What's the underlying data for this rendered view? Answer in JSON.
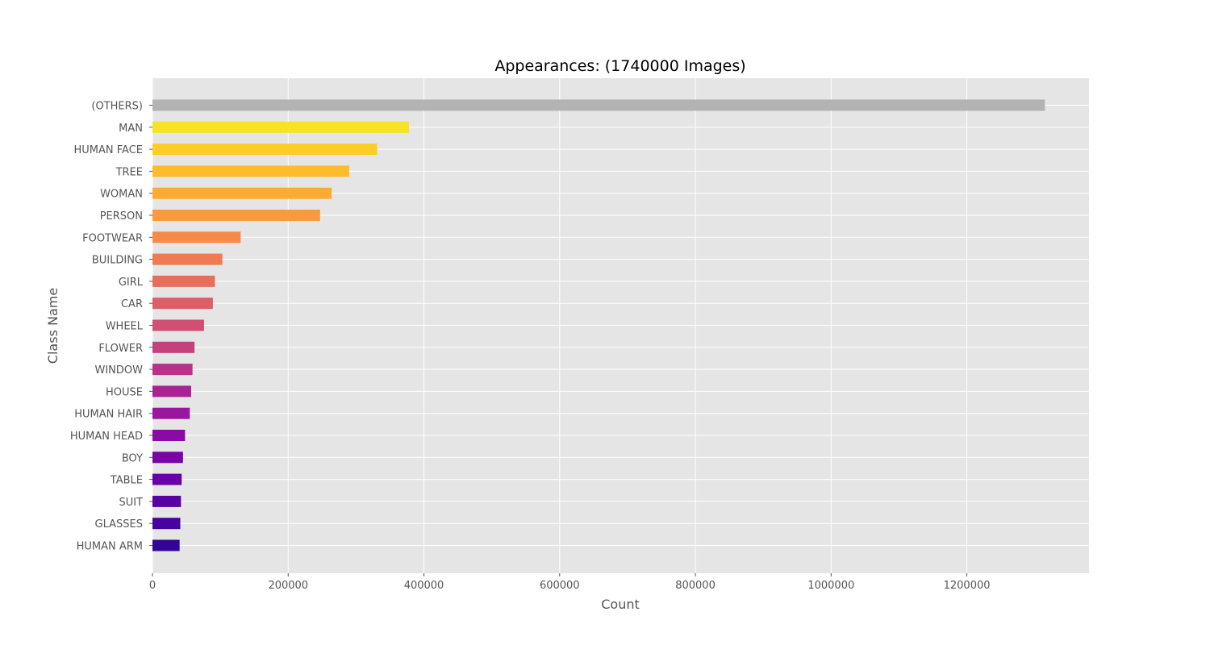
{
  "chart_data": {
    "type": "bar",
    "orientation": "horizontal",
    "title": "Appearances: (1740000 Images)",
    "xlabel": "Count",
    "ylabel": "Class Name",
    "xlim": [
      0,
      1380000
    ],
    "xticks": [
      0,
      200000,
      400000,
      600000,
      800000,
      1000000,
      1200000
    ],
    "xtick_labels": [
      "0",
      "200000",
      "400000",
      "600000",
      "800000",
      "1000000",
      "1200000"
    ],
    "grid": true,
    "categories": [
      "(OTHERS)",
      "MAN",
      "HUMAN FACE",
      "TREE",
      "WOMAN",
      "PERSON",
      "FOOTWEAR",
      "BUILDING",
      "GIRL",
      "CAR",
      "WHEEL",
      "FLOWER",
      "WINDOW",
      "HOUSE",
      "HUMAN HAIR",
      "HUMAN HEAD",
      "BOY",
      "TABLE",
      "SUIT",
      "GLASSES",
      "HUMAN ARM"
    ],
    "values": [
      1315000,
      378000,
      331000,
      290000,
      264000,
      247000,
      130000,
      103000,
      92000,
      89000,
      76000,
      62000,
      59000,
      57000,
      55000,
      48000,
      45000,
      43000,
      42000,
      41000,
      40000
    ],
    "colors": [
      "#b3b3b3",
      "#f7e225",
      "#fdcd25",
      "#febb2b",
      "#fdab33",
      "#fb9a3c",
      "#f68b45",
      "#ee7b51",
      "#e76e5b",
      "#dc5e66",
      "#d04f73",
      "#c5407e",
      "#b83289",
      "#a92394",
      "#9a169f",
      "#8b0aa5",
      "#7a03a8",
      "#6a00a8",
      "#5902a3",
      "#46039f",
      "#330597"
    ]
  }
}
